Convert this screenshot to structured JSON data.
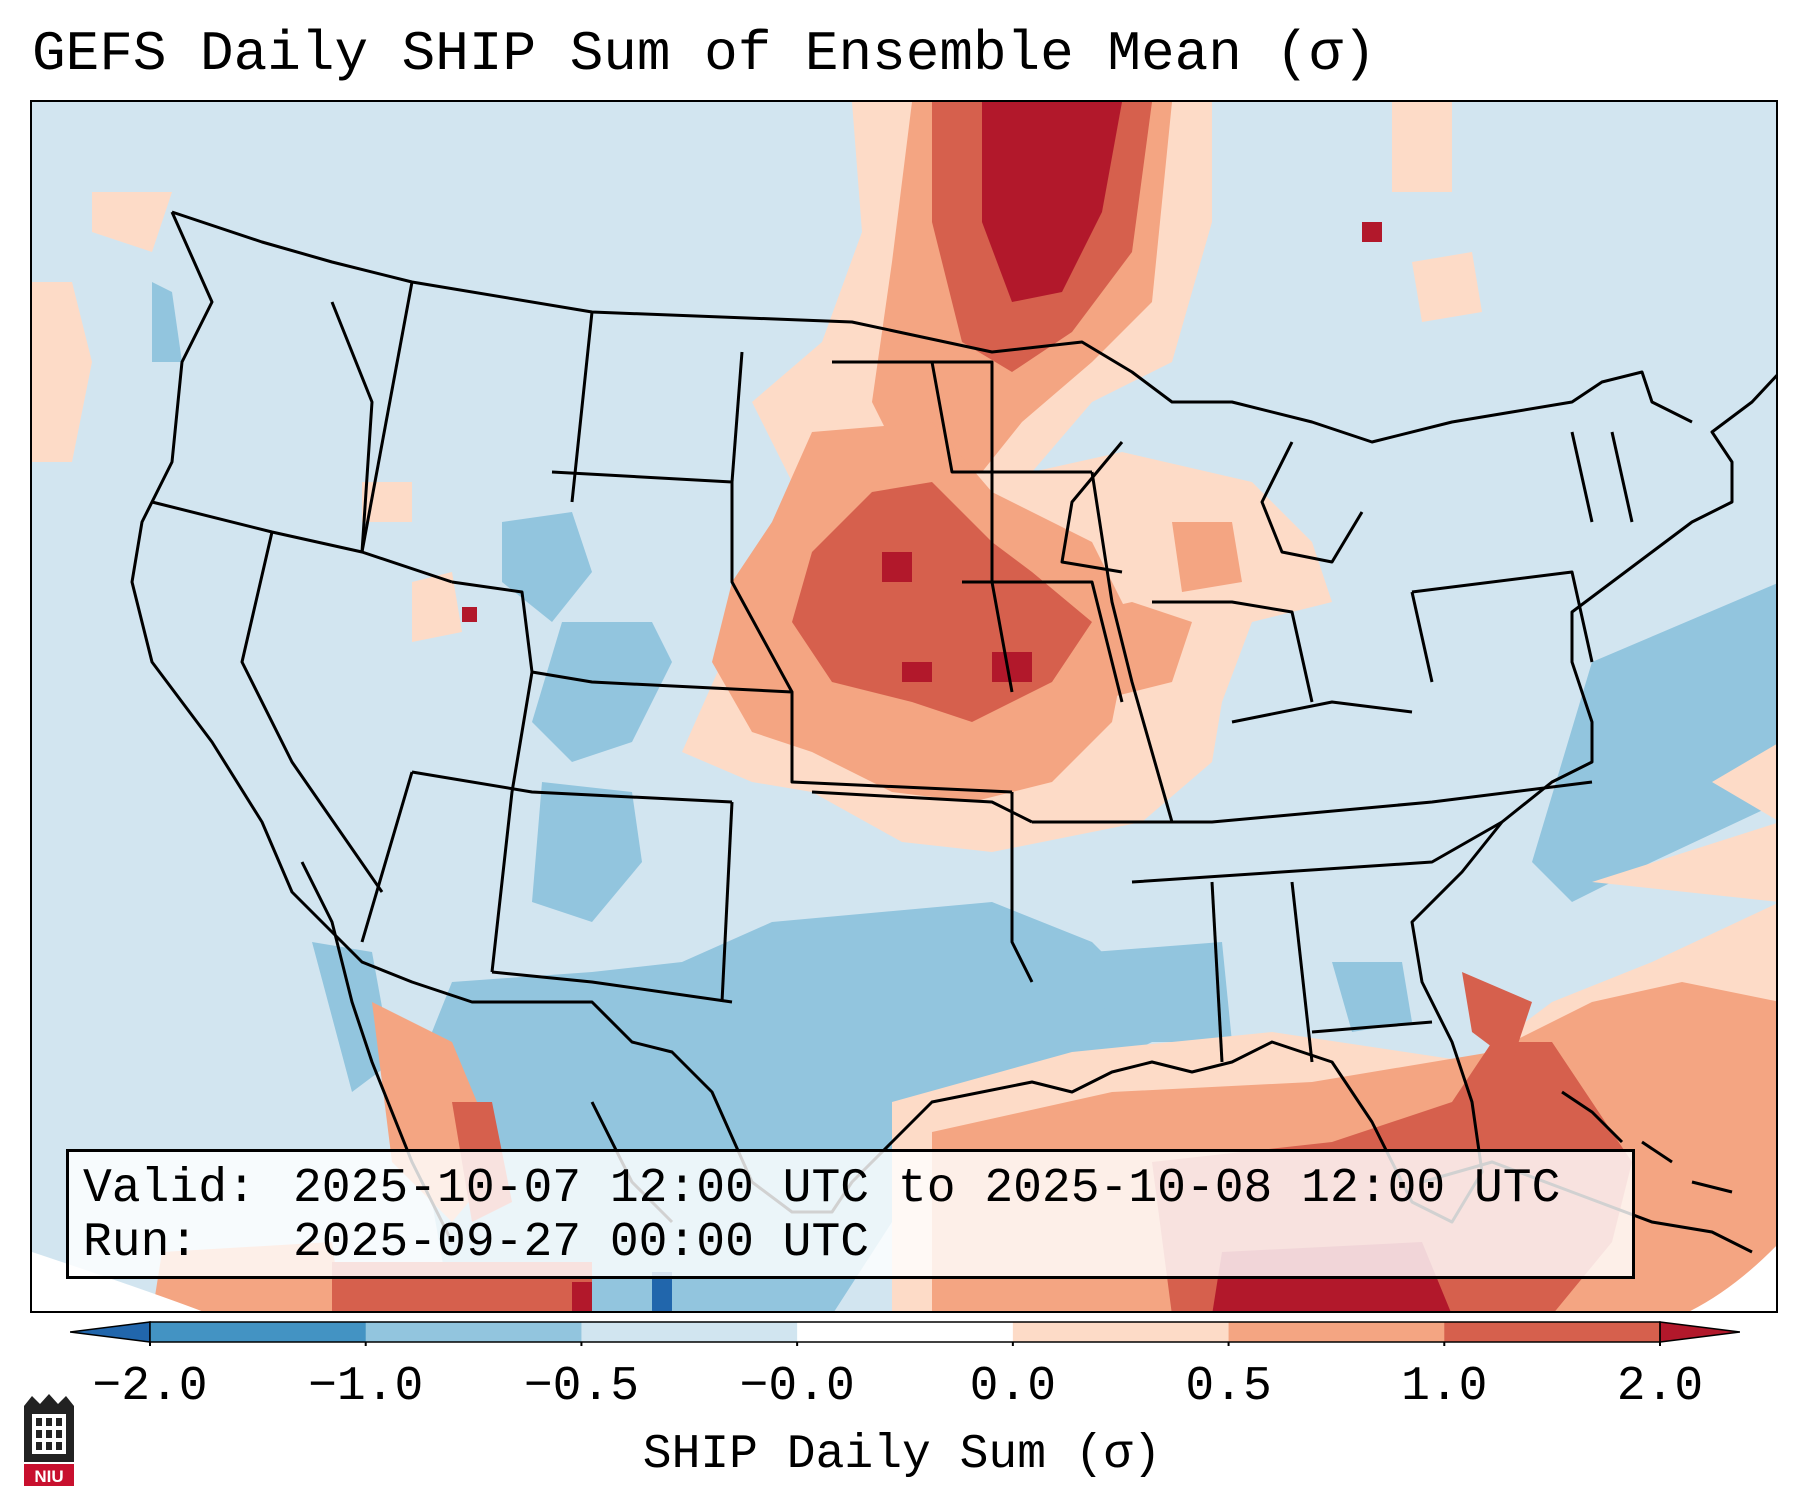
{
  "title": "GEFS Daily SHIP Sum of Ensemble Mean (σ)",
  "info": {
    "valid_label": "Valid:",
    "valid_value": "2025-10-07 12:00 UTC to 2025-10-08 12:00 UTC",
    "run_label": "Run:",
    "run_value": "2025-09-27 00:00 UTC"
  },
  "colorbar": {
    "label": "SHIP Daily Sum (σ)",
    "ticks": [
      "−2.0",
      "−1.0",
      "−0.5",
      "−0.0",
      "0.0",
      "0.5",
      "1.0",
      "2.0"
    ],
    "colors": [
      "#4393c3",
      "#92c5de",
      "#d1e5f0",
      "#ffffff",
      "#fddbc7",
      "#f4a582",
      "#d6604d"
    ],
    "extend_low_color": "#2166ac",
    "extend_high_color": "#b2182b"
  },
  "logo": {
    "text": "NIU",
    "color": "#c8102e"
  },
  "colors": {
    "ocean_neutral": "#d2e5f0",
    "light_red": "#fddbc7",
    "mid_red": "#f4a582",
    "strong_red": "#d6604d",
    "max_red": "#b2182b",
    "light_blue": "#92c5de"
  }
}
